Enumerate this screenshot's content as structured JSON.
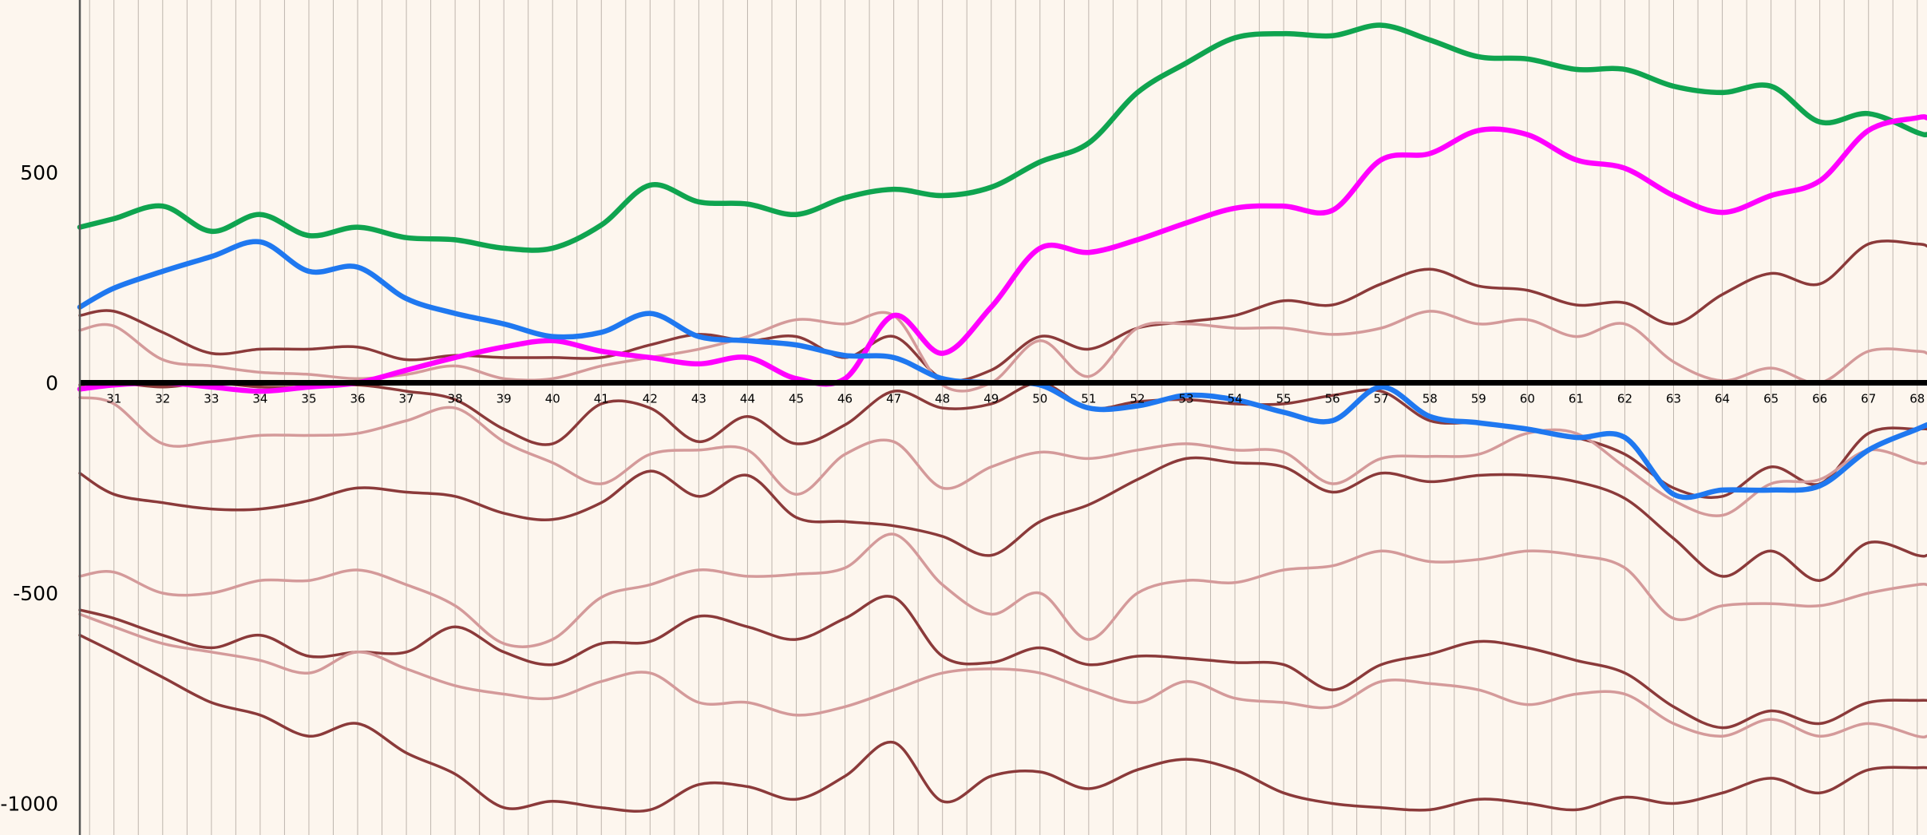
{
  "chart_data": {
    "type": "line",
    "title": "",
    "xlabel": "",
    "ylabel": "",
    "xlim": [
      30.3,
      68.2
    ],
    "ylim": [
      -1075,
      910
    ],
    "x_tick_labels": [
      "31",
      "32",
      "33",
      "34",
      "35",
      "36",
      "37",
      "38",
      "39",
      "40",
      "41",
      "42",
      "43",
      "44",
      "45",
      "46",
      "47",
      "48",
      "49",
      "50",
      "51",
      "52",
      "53",
      "54",
      "55",
      "56",
      "57",
      "58",
      "59",
      "60",
      "61",
      "62",
      "63",
      "64",
      "65",
      "66",
      "67",
      "68"
    ],
    "y_tick_labels": [
      "500",
      "0",
      "-500",
      "-1000"
    ],
    "y_ticks": [
      500,
      0,
      -500,
      -1000
    ],
    "grid": true,
    "legend": "none",
    "colors": {
      "background": "#fdf6ee",
      "grid": "#8a8078",
      "zero_line": "#000000",
      "green": "#0fa44f",
      "magenta": "#ff00ff",
      "blue": "#1f78f0",
      "dark_brown": "#8b3a3a",
      "light_brown": "#d49a9a"
    },
    "series": [
      {
        "key": "green",
        "color": "#0fa44f",
        "width": 6.5,
        "x": [
          30.3,
          31,
          32,
          33,
          34,
          35,
          36,
          37,
          38,
          39,
          40,
          41,
          42,
          43,
          44,
          45,
          46,
          47,
          48,
          49,
          50,
          51,
          52,
          53,
          54,
          55,
          56,
          57,
          58,
          59,
          60,
          61,
          62,
          63,
          64,
          65,
          66,
          67,
          68,
          68.2
        ],
        "y": [
          370,
          390,
          420,
          360,
          400,
          350,
          370,
          345,
          340,
          320,
          320,
          375,
          470,
          430,
          425,
          400,
          440,
          460,
          445,
          465,
          525,
          570,
          690,
          760,
          820,
          830,
          825,
          850,
          815,
          775,
          770,
          745,
          745,
          705,
          690,
          705,
          620,
          640,
          595,
          590
        ]
      },
      {
        "key": "magenta",
        "color": "#ff00ff",
        "width": 6.5,
        "x": [
          30.3,
          31,
          32,
          33,
          34,
          35,
          36,
          37,
          38,
          39,
          40,
          41,
          42,
          43,
          44,
          45,
          46,
          47,
          48,
          49,
          50,
          51,
          52,
          53,
          54,
          55,
          56,
          57,
          58,
          59,
          60,
          61,
          62,
          63,
          64,
          65,
          66,
          67,
          68,
          68.2
        ],
        "y": [
          -15,
          -5,
          0,
          -10,
          -20,
          -10,
          0,
          30,
          60,
          85,
          100,
          75,
          60,
          45,
          60,
          10,
          10,
          160,
          70,
          180,
          320,
          310,
          340,
          380,
          415,
          420,
          410,
          530,
          545,
          600,
          590,
          530,
          510,
          445,
          405,
          445,
          480,
          600,
          630,
          630
        ]
      },
      {
        "key": "blue",
        "color": "#1f78f0",
        "width": 6.5,
        "x": [
          30.3,
          31,
          32,
          33,
          34,
          35,
          36,
          37,
          38,
          39,
          40,
          41,
          42,
          43,
          44,
          45,
          46,
          47,
          48,
          49,
          50,
          51,
          52,
          53,
          54,
          55,
          56,
          57,
          58,
          59,
          60,
          61,
          62,
          63,
          64,
          65,
          66,
          67,
          68,
          68.2
        ],
        "y": [
          180,
          225,
          265,
          300,
          335,
          265,
          275,
          200,
          165,
          140,
          110,
          120,
          165,
          110,
          100,
          90,
          65,
          60,
          10,
          0,
          -5,
          -60,
          -55,
          -30,
          -40,
          -70,
          -90,
          -10,
          -80,
          -95,
          -110,
          -130,
          -130,
          -265,
          -255,
          -255,
          -245,
          -160,
          -110,
          -100
        ]
      },
      {
        "key": "dark1",
        "color": "#8b3a3a",
        "width": 3.5,
        "x": [
          30.3,
          31,
          32,
          33,
          34,
          35,
          36,
          37,
          38,
          39,
          40,
          41,
          42,
          43,
          44,
          45,
          46,
          47,
          48,
          49,
          50,
          51,
          52,
          53,
          54,
          55,
          56,
          57,
          58,
          59,
          60,
          61,
          62,
          63,
          64,
          65,
          66,
          67,
          68,
          68.2
        ],
        "y": [
          160,
          170,
          120,
          70,
          80,
          80,
          85,
          55,
          65,
          60,
          60,
          60,
          90,
          115,
          100,
          110,
          60,
          110,
          10,
          30,
          110,
          80,
          130,
          145,
          160,
          195,
          185,
          235,
          270,
          230,
          220,
          185,
          190,
          140,
          210,
          260,
          235,
          330,
          330,
          325
        ]
      },
      {
        "key": "light1",
        "color": "#d49a9a",
        "width": 3.5,
        "x": [
          30.3,
          31,
          32,
          33,
          34,
          35,
          36,
          37,
          38,
          39,
          40,
          41,
          42,
          43,
          44,
          45,
          46,
          47,
          48,
          49,
          50,
          51,
          52,
          53,
          54,
          55,
          56,
          57,
          58,
          59,
          60,
          61,
          62,
          63,
          64,
          65,
          66,
          67,
          68,
          68.2
        ],
        "y": [
          125,
          135,
          55,
          40,
          25,
          20,
          10,
          20,
          40,
          10,
          10,
          40,
          60,
          80,
          110,
          150,
          140,
          160,
          -5,
          0,
          100,
          15,
          130,
          140,
          130,
          130,
          115,
          130,
          170,
          140,
          150,
          110,
          140,
          50,
          5,
          35,
          0,
          75,
          75,
          70
        ]
      },
      {
        "key": "dark2",
        "color": "#8b3a3a",
        "width": 3.5,
        "x": [
          30.3,
          31,
          32,
          33,
          34,
          35,
          36,
          37,
          38,
          39,
          40,
          41,
          42,
          43,
          44,
          45,
          46,
          47,
          48,
          49,
          50,
          51,
          52,
          53,
          54,
          55,
          56,
          57,
          58,
          59,
          60,
          61,
          62,
          63,
          64,
          65,
          66,
          67,
          68,
          68.2
        ],
        "y": [
          -5,
          0,
          -10,
          0,
          -10,
          -10,
          -5,
          -20,
          -40,
          -110,
          -145,
          -50,
          -60,
          -140,
          -80,
          -145,
          -100,
          -20,
          -60,
          -50,
          0,
          -60,
          -45,
          -40,
          -50,
          -50,
          -30,
          -20,
          -90,
          -95,
          -110,
          -130,
          -170,
          -250,
          -270,
          -200,
          -240,
          -120,
          -110,
          -110
        ]
      },
      {
        "key": "light2",
        "color": "#d49a9a",
        "width": 3.5,
        "x": [
          30.3,
          31,
          32,
          33,
          34,
          35,
          36,
          37,
          38,
          39,
          40,
          41,
          42,
          43,
          44,
          45,
          46,
          47,
          48,
          49,
          50,
          51,
          52,
          53,
          54,
          55,
          56,
          57,
          58,
          59,
          60,
          61,
          62,
          63,
          64,
          65,
          66,
          67,
          68,
          68.2
        ],
        "y": [
          -35,
          -50,
          -145,
          -140,
          -125,
          -125,
          -120,
          -90,
          -60,
          -140,
          -190,
          -240,
          -170,
          -160,
          -160,
          -265,
          -170,
          -140,
          -250,
          -200,
          -165,
          -180,
          -160,
          -145,
          -160,
          -165,
          -240,
          -180,
          -175,
          -170,
          -120,
          -120,
          -200,
          -280,
          -315,
          -240,
          -230,
          -160,
          -190,
          -190
        ]
      },
      {
        "key": "dark3",
        "color": "#8b3a3a",
        "width": 3.5,
        "x": [
          30.3,
          31,
          32,
          33,
          34,
          35,
          36,
          37,
          38,
          39,
          40,
          41,
          42,
          43,
          44,
          45,
          46,
          47,
          48,
          49,
          50,
          51,
          52,
          53,
          54,
          55,
          56,
          57,
          58,
          59,
          60,
          61,
          62,
          63,
          64,
          65,
          66,
          67,
          68,
          68.2
        ],
        "y": [
          -215,
          -265,
          -285,
          -300,
          -300,
          -280,
          -250,
          -260,
          -270,
          -310,
          -325,
          -285,
          -210,
          -270,
          -220,
          -320,
          -330,
          -340,
          -365,
          -410,
          -330,
          -290,
          -230,
          -180,
          -190,
          -200,
          -260,
          -215,
          -235,
          -220,
          -220,
          -235,
          -275,
          -370,
          -460,
          -400,
          -470,
          -380,
          -410,
          -410
        ]
      },
      {
        "key": "light3",
        "color": "#d49a9a",
        "width": 3.5,
        "x": [
          30.3,
          31,
          32,
          33,
          34,
          35,
          36,
          37,
          38,
          39,
          40,
          41,
          42,
          43,
          44,
          45,
          46,
          47,
          48,
          49,
          50,
          51,
          52,
          53,
          54,
          55,
          56,
          57,
          58,
          59,
          60,
          61,
          62,
          63,
          64,
          65,
          66,
          67,
          68,
          68.2
        ],
        "y": [
          -460,
          -450,
          -500,
          -500,
          -470,
          -470,
          -445,
          -480,
          -530,
          -620,
          -610,
          -510,
          -480,
          -445,
          -460,
          -455,
          -440,
          -360,
          -480,
          -550,
          -500,
          -610,
          -500,
          -470,
          -475,
          -445,
          -435,
          -400,
          -425,
          -420,
          -400,
          -410,
          -440,
          -560,
          -530,
          -525,
          -530,
          -500,
          -480,
          -480
        ]
      },
      {
        "key": "dark4",
        "color": "#8b3a3a",
        "width": 3.5,
        "x": [
          30.3,
          31,
          32,
          33,
          34,
          35,
          36,
          37,
          38,
          39,
          40,
          41,
          42,
          43,
          44,
          45,
          46,
          47,
          48,
          49,
          50,
          51,
          52,
          53,
          54,
          55,
          56,
          57,
          58,
          59,
          60,
          61,
          62,
          63,
          64,
          65,
          66,
          67,
          68,
          68.2
        ],
        "y": [
          -540,
          -560,
          -600,
          -630,
          -600,
          -650,
          -640,
          -640,
          -580,
          -640,
          -670,
          -620,
          -615,
          -555,
          -580,
          -610,
          -560,
          -510,
          -650,
          -665,
          -630,
          -670,
          -650,
          -655,
          -665,
          -670,
          -730,
          -670,
          -645,
          -615,
          -630,
          -660,
          -690,
          -770,
          -820,
          -780,
          -810,
          -760,
          -755,
          -755
        ]
      },
      {
        "key": "light4",
        "color": "#d49a9a",
        "width": 3.5,
        "x": [
          30.3,
          31,
          32,
          33,
          34,
          35,
          36,
          37,
          38,
          39,
          40,
          41,
          42,
          43,
          44,
          45,
          46,
          47,
          48,
          49,
          50,
          51,
          52,
          53,
          54,
          55,
          56,
          57,
          58,
          59,
          60,
          61,
          62,
          63,
          64,
          65,
          66,
          67,
          68,
          68.2
        ],
        "y": [
          -550,
          -580,
          -620,
          -640,
          -660,
          -690,
          -640,
          -680,
          -720,
          -740,
          -750,
          -710,
          -690,
          -760,
          -760,
          -790,
          -770,
          -730,
          -690,
          -680,
          -690,
          -730,
          -760,
          -710,
          -750,
          -760,
          -770,
          -710,
          -715,
          -730,
          -765,
          -740,
          -740,
          -810,
          -840,
          -800,
          -840,
          -810,
          -840,
          -840
        ]
      },
      {
        "key": "dark5",
        "color": "#8b3a3a",
        "width": 3.5,
        "x": [
          30.3,
          31,
          32,
          33,
          34,
          35,
          36,
          37,
          38,
          39,
          40,
          41,
          42,
          43,
          44,
          45,
          46,
          47,
          48,
          49,
          50,
          51,
          52,
          53,
          54,
          55,
          56,
          57,
          58,
          59,
          60,
          61,
          62,
          63,
          64,
          65,
          66,
          67,
          68,
          68.2
        ],
        "y": [
          -600,
          -640,
          -700,
          -760,
          -790,
          -840,
          -810,
          -880,
          -930,
          -1010,
          -995,
          -1010,
          -1015,
          -955,
          -960,
          -990,
          -935,
          -855,
          -995,
          -935,
          -925,
          -965,
          -920,
          -895,
          -920,
          -975,
          -1000,
          -1010,
          -1015,
          -990,
          -1000,
          -1015,
          -985,
          -1000,
          -975,
          -940,
          -975,
          -920,
          -915,
          -915
        ]
      }
    ]
  }
}
